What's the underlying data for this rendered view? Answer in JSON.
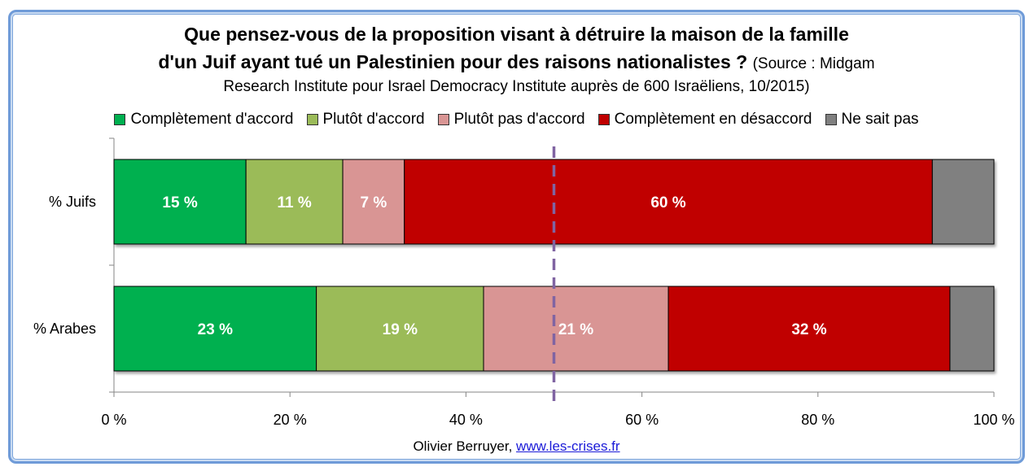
{
  "header": {
    "title_line1": "Que pensez-vous de la proposition visant à détruire la maison de la famille",
    "title_line2": "d'un Juif ayant tué un Palestinien pour des raisons nationalistes ?",
    "source_part1": "(Source : Midgam",
    "source_line3": "Research Institute pour Israel Democracy Institute auprès de 600 Israëliens, 10/2015)"
  },
  "credit": {
    "author": "Olivier Berruyer,",
    "link_text": "www.les-crises.fr"
  },
  "chart_data": {
    "type": "bar",
    "orientation": "horizontal",
    "stacked": true,
    "title": "Que pensez-vous de la proposition visant à détruire la maison de la famille d'un Juif ayant tué un Palestinien pour des raisons nationalistes ?",
    "subtitle": "(Source : Midgam Research Institute pour Israel Democracy Institute auprès de 600 Israëliens, 10/2015)",
    "categories": [
      "% Juifs",
      "% Arabes"
    ],
    "series": [
      {
        "name": "Complètement d'accord",
        "color": "#00b050",
        "values": [
          15,
          23
        ],
        "labels": [
          "15 %",
          "23 %"
        ]
      },
      {
        "name": "Plutôt d'accord",
        "color": "#9bbb59",
        "values": [
          11,
          19
        ],
        "labels": [
          "11 %",
          "19 %"
        ]
      },
      {
        "name": "Plutôt pas d'accord",
        "color": "#d99594",
        "values": [
          7,
          21
        ],
        "labels": [
          "7 %",
          "21 %"
        ]
      },
      {
        "name": "Complètement en désaccord",
        "color": "#c00000",
        "values": [
          60,
          32
        ],
        "labels": [
          "60 %",
          "32 %"
        ]
      },
      {
        "name": "Ne sait pas",
        "color": "#808080",
        "values": [
          7,
          5
        ],
        "labels": [
          "",
          ""
        ]
      }
    ],
    "xlim": [
      0,
      100
    ],
    "x_ticks": [
      0,
      20,
      40,
      60,
      80,
      100
    ],
    "x_tick_labels": [
      "0 %",
      "20 %",
      "40 %",
      "60 %",
      "80 %",
      "100 %"
    ],
    "reference_line": {
      "value": 50,
      "style": "dashed",
      "color": "#8064a2"
    },
    "legend_position": "top",
    "grid": false,
    "xlabel": "",
    "ylabel": ""
  }
}
